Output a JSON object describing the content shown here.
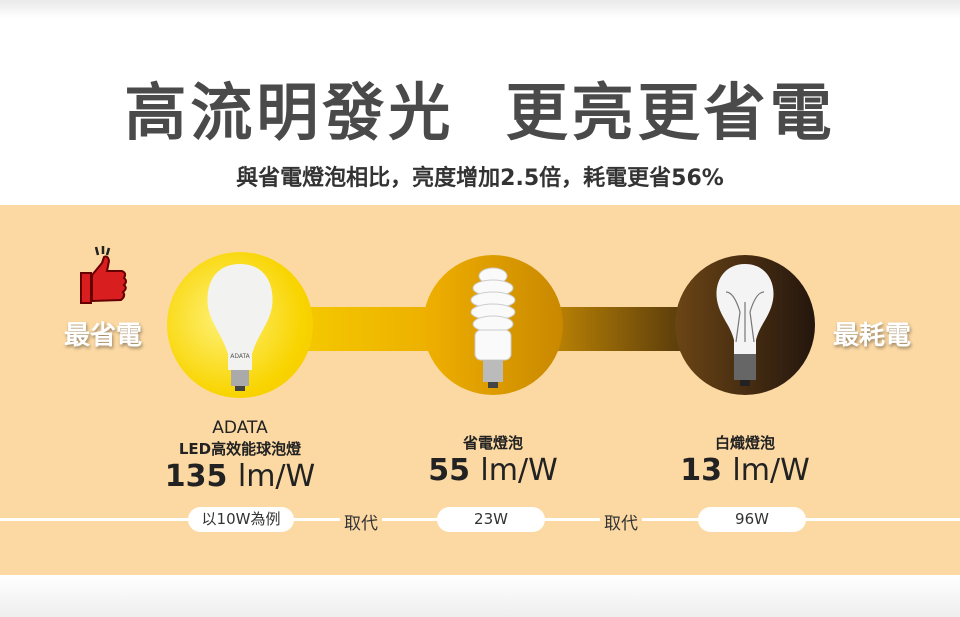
{
  "header": {
    "title": "高流明發光  更亮更省電",
    "subtitle": "與省電燈泡相比，亮度增加2.5倍，耗電更省56%"
  },
  "labels": {
    "best": "最省電",
    "worst": "最耗電"
  },
  "bulbs": [
    {
      "brand": "ADATA",
      "name": "LED高效能球泡燈",
      "value": "135",
      "unit": "lm/W",
      "watt": "以10W為例",
      "logo": "ADATA"
    },
    {
      "name": "省電燈泡",
      "value": "55",
      "unit": "lm/W",
      "watt": "23W"
    },
    {
      "name": "白熾燈泡",
      "value": "13",
      "unit": "lm/W",
      "watt": "96W"
    }
  ],
  "replace_label": "取代",
  "colors": {
    "panel": "#fcd9a3",
    "led": "#f8d400",
    "cfl": "#e0a000",
    "incandescent": "#2b1a10",
    "thumb": "#d81e1e"
  }
}
